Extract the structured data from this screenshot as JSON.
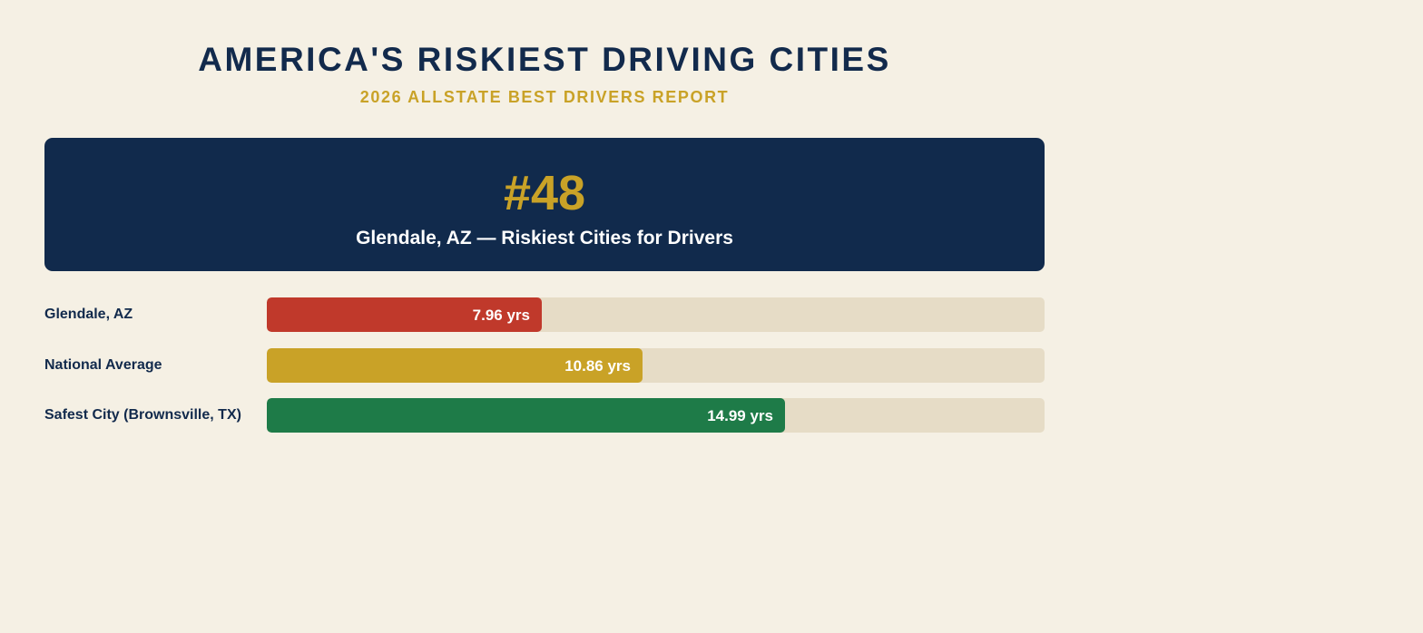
{
  "header": {
    "title": "AMERICA'S RISKIEST DRIVING CITIES",
    "subtitle": "2026 ALLSTATE BEST DRIVERS REPORT"
  },
  "rank_card": {
    "rank": "#48",
    "caption": "Glendale, AZ — Riskiest Cities for Drivers"
  },
  "colors": {
    "background": "#f5f0e4",
    "navy": "#112a4c",
    "gold": "#c9a227",
    "track": "#e6dcc6"
  },
  "chart_data": {
    "type": "bar",
    "orientation": "horizontal",
    "categories": [
      "Glendale, AZ",
      "National Average",
      "Safest City (Brownsville, TX)"
    ],
    "values": [
      7.96,
      10.86,
      14.99
    ],
    "value_labels": [
      "7.96 yrs",
      "10.86 yrs",
      "14.99 yrs"
    ],
    "colors": [
      "#c0392b",
      "#c9a227",
      "#1e7b48"
    ],
    "xlim": [
      0,
      22.5
    ],
    "grid": false
  }
}
